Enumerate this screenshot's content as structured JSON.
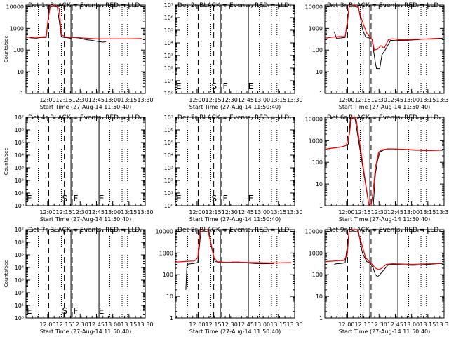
{
  "shared": {
    "xtick_labels": [
      "12:00",
      "12:15",
      "12:30",
      "12:45",
      "13:00",
      "13:15",
      "13:30"
    ],
    "xlabel": "Start Time (27-Aug-14 11:50:40)",
    "x_range_minutes": [
      -10.67,
      99.33
    ],
    "dotted_lines_minutes": [
      0.67,
      22.0,
      66.67,
      78.0,
      83.0
    ],
    "dashed_lines_minutes": [
      10.33,
      24.67,
      32.0
    ],
    "solid_lines_minutes": [
      30.8,
      56.67
    ],
    "phase_letters": [
      "E",
      "S",
      "F",
      "E"
    ],
    "colors": {
      "events": "#000000",
      "lld": "#ff0000"
    }
  },
  "chart_data": [
    {
      "type": "line",
      "title": "Det 1r BLACK = Events, RED = LLD",
      "ylabel": "Counts/sec",
      "yscale": "log",
      "ylim": [
        1,
        12000
      ],
      "ytick_labels": [
        "1",
        "10",
        "100",
        "1000",
        "10000"
      ],
      "show_letters": false,
      "series": [
        {
          "name": "Events",
          "x": [
            -7,
            -1,
            3,
            8,
            11,
            14,
            18,
            22,
            25,
            28,
            30,
            33,
            38,
            45,
            50,
            55,
            60,
            63
          ],
          "y": [
            370,
            350,
            380,
            380,
            12000,
            12000,
            12000,
            400,
            380,
            370,
            350,
            380,
            360,
            300,
            280,
            250,
            230,
            240
          ]
        },
        {
          "name": "LLD",
          "x": [
            -10.67,
            -3,
            3,
            8,
            10,
            12,
            16,
            20,
            22,
            26,
            30,
            35,
            45,
            55,
            65,
            75,
            85,
            96
          ],
          "y": [
            380,
            400,
            400,
            420,
            3000,
            12000,
            12000,
            8000,
            500,
            400,
            380,
            380,
            350,
            330,
            330,
            330,
            330,
            340
          ]
        }
      ]
    },
    {
      "type": "line",
      "title": "Det 2r BLACK = Events, RED = LLD",
      "ylabel": "",
      "yscale": "log",
      "ylim": [
        1,
        10000000
      ],
      "ytick_labels": [
        "10⁰",
        "10¹",
        "10²",
        "10³",
        "10⁴",
        "10⁵",
        "10⁶",
        "10⁷"
      ],
      "show_letters": true,
      "series": []
    },
    {
      "type": "line",
      "title": "Det 3r BLACK = Events, RED = LLD",
      "ylabel": "",
      "yscale": "log",
      "ylim": [
        1,
        12000
      ],
      "ytick_labels": [
        "1",
        "10",
        "100",
        "1000",
        "10000"
      ],
      "show_letters": false,
      "series": [
        {
          "name": "Events",
          "x": [
            -2,
            0,
            4,
            8,
            12,
            16,
            20,
            24,
            27,
            29,
            31,
            33,
            34,
            36,
            37,
            40,
            42,
            45,
            50,
            55,
            60,
            65,
            70,
            75,
            80,
            85,
            92,
            98
          ],
          "y": [
            700,
            350,
            360,
            380,
            12000,
            12000,
            12000,
            900,
            400,
            380,
            350,
            300,
            120,
            25,
            14,
            14,
            60,
            100,
            280,
            270,
            280,
            280,
            290,
            300,
            320,
            330,
            340,
            350
          ]
        },
        {
          "name": "LLD",
          "x": [
            -10.67,
            -3,
            3,
            8,
            10,
            12,
            16,
            20,
            24,
            28,
            31,
            33,
            35,
            38,
            41,
            44,
            48,
            52,
            58,
            65,
            72,
            80,
            88,
            96
          ],
          "y": [
            350,
            400,
            420,
            420,
            1500,
            12000,
            12000,
            9000,
            2000,
            600,
            400,
            300,
            100,
            110,
            160,
            120,
            300,
            330,
            300,
            300,
            310,
            320,
            320,
            330
          ]
        }
      ]
    },
    {
      "type": "line",
      "title": "Det 4r BLACK = Events, RED = LLD",
      "ylabel": "Counts/sec",
      "yscale": "log",
      "ylim": [
        1,
        10000000
      ],
      "ytick_labels": [
        "10⁰",
        "10¹",
        "10²",
        "10³",
        "10⁴",
        "10⁵",
        "10⁶",
        "10⁷"
      ],
      "show_letters": true,
      "series": []
    },
    {
      "type": "line",
      "title": "Det 5r BLACK = Events, RED = LLD",
      "ylabel": "",
      "yscale": "log",
      "ylim": [
        1,
        10000000
      ],
      "ytick_labels": [
        "10⁰",
        "10¹",
        "10²",
        "10³",
        "10⁴",
        "10⁵",
        "10⁶",
        "10⁷"
      ],
      "show_letters": true,
      "series": []
    },
    {
      "type": "line",
      "title": "Det 6r BLACK = Events, RED = LLD",
      "ylabel": "",
      "yscale": "log",
      "ylim": [
        1,
        12000
      ],
      "ytick_labels": [
        "1",
        "10",
        "100",
        "1000",
        "10000"
      ],
      "show_letters": false,
      "series": [
        {
          "name": "Events",
          "x": [
            -7,
            -4,
            -1,
            3,
            7,
            9,
            11,
            13,
            15,
            17,
            30,
            34,
            36,
            38,
            40,
            45,
            50,
            55,
            58,
            62,
            66,
            70,
            75,
            80,
            85,
            92,
            98
          ],
          "y": [
            420,
            450,
            480,
            500,
            550,
            600,
            700,
            12000,
            12000,
            12000,
            1,
            1,
            30,
            120,
            300,
            400,
            420,
            410,
            400,
            390,
            380,
            370,
            360,
            350,
            350,
            360,
            360
          ]
        },
        {
          "name": "LLD",
          "x": [
            -10.67,
            -4,
            1,
            5,
            9,
            12,
            14,
            16,
            18,
            30,
            32,
            34,
            36,
            39,
            42,
            48,
            55,
            62,
            70,
            78,
            86,
            96
          ],
          "y": [
            400,
            450,
            480,
            520,
            600,
            2000,
            12000,
            12000,
            12000,
            1,
            1,
            5,
            60,
            300,
            380,
            420,
            410,
            400,
            380,
            360,
            350,
            360
          ]
        }
      ]
    },
    {
      "type": "line",
      "title": "Det 7r BLACK = Events, RED = LLD",
      "ylabel": "Counts/sec",
      "yscale": "log",
      "ylim": [
        1,
        10000000
      ],
      "ytick_labels": [
        "10⁰",
        "10¹",
        "10²",
        "10³",
        "10⁴",
        "10⁵",
        "10⁶",
        "10⁷"
      ],
      "show_letters": true,
      "series": []
    },
    {
      "type": "line",
      "title": "Det 8r BLACK = Events, RED = LLD",
      "ylabel": "",
      "yscale": "log",
      "ylim": [
        1,
        12000
      ],
      "ytick_labels": [
        "1",
        "10",
        "100",
        "1000",
        "10000"
      ],
      "show_letters": false,
      "series": [
        {
          "name": "Events",
          "x": [
            -1,
            0,
            2,
            6,
            10,
            13,
            16,
            20,
            23,
            26,
            29,
            32,
            36,
            42,
            48,
            55,
            62,
            70,
            80
          ],
          "y": [
            20,
            300,
            310,
            330,
            360,
            12000,
            12000,
            12000,
            1500,
            400,
            380,
            370,
            360,
            380,
            380,
            350,
            330,
            320,
            330
          ]
        },
        {
          "name": "LLD",
          "x": [
            -10.67,
            -4,
            2,
            7,
            10,
            12,
            15,
            19,
            22,
            25,
            28,
            32,
            38,
            45,
            55,
            65,
            75,
            85,
            96
          ],
          "y": [
            380,
            400,
            420,
            430,
            600,
            12000,
            12000,
            12000,
            3000,
            600,
            400,
            380,
            370,
            380,
            370,
            360,
            350,
            350,
            360
          ]
        }
      ]
    },
    {
      "type": "line",
      "title": "Det 9r BLACK = Events, RED = LLD",
      "ylabel": "",
      "yscale": "log",
      "ylim": [
        1,
        12000
      ],
      "ytick_labels": [
        "1",
        "10",
        "100",
        "1000",
        "10000"
      ],
      "show_letters": false,
      "series": [
        {
          "name": "Events",
          "x": [
            -2,
            0,
            4,
            8,
            12,
            16,
            20,
            24,
            28,
            31,
            34,
            36,
            38,
            40,
            43,
            48,
            55,
            62,
            70,
            78,
            86,
            92,
            98
          ],
          "y": [
            300,
            320,
            330,
            350,
            12000,
            12000,
            12000,
            1000,
            400,
            350,
            200,
            100,
            80,
            100,
            150,
            300,
            290,
            280,
            270,
            280,
            300,
            320,
            330
          ]
        },
        {
          "name": "LLD",
          "x": [
            -10.67,
            -4,
            2,
            7,
            10,
            12,
            15,
            19,
            23,
            27,
            30,
            33,
            36,
            39,
            42,
            46,
            52,
            60,
            70,
            80,
            90,
            96
          ],
          "y": [
            400,
            420,
            440,
            450,
            800,
            12000,
            12000,
            12000,
            3000,
            600,
            420,
            300,
            200,
            170,
            200,
            300,
            320,
            310,
            300,
            310,
            320,
            330
          ]
        }
      ]
    }
  ]
}
